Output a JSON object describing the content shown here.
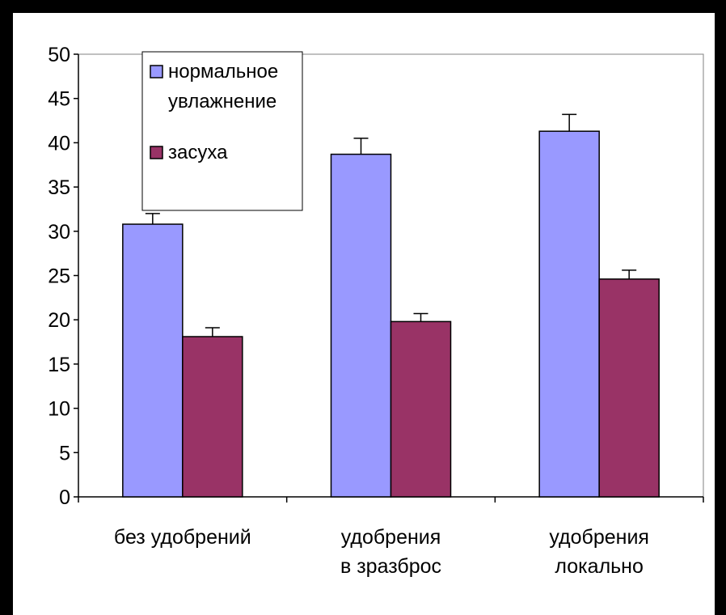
{
  "chart_data": {
    "type": "bar",
    "categories": [
      [
        "без удобрений"
      ],
      [
        "удобрения",
        "в зразброс"
      ],
      [
        "удобрения",
        "локально"
      ]
    ],
    "series": [
      {
        "name": "нормальное увлажнение",
        "values": [
          30.8,
          38.7,
          41.3
        ],
        "errors": [
          1.2,
          1.8,
          1.9
        ],
        "color": "#9999FF"
      },
      {
        "name": "засуха",
        "values": [
          18.1,
          19.8,
          24.6
        ],
        "errors": [
          1.0,
          0.9,
          1.0
        ],
        "color": "#993366"
      }
    ],
    "legend_lines": [
      [
        "нормальное",
        "увлажнение"
      ],
      [
        "засуха"
      ]
    ],
    "ylim": [
      0,
      50
    ],
    "yticks": [
      0,
      5,
      10,
      15,
      20,
      25,
      30,
      35,
      40,
      45,
      50
    ],
    "grid": false,
    "legend_position": "top-left",
    "title": "",
    "xlabel": "",
    "ylabel": ""
  }
}
